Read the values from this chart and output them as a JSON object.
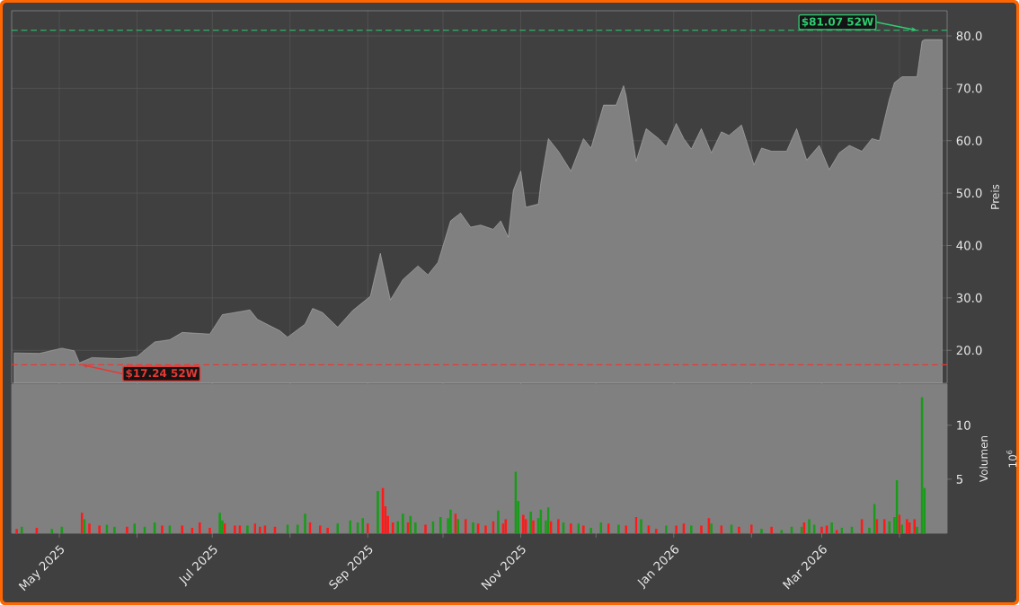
{
  "chart_data": [
    {
      "type": "area",
      "ylabel": "Preis",
      "color": "#808080",
      "grid": true,
      "tick_labels": "y",
      "x": [
        "2025-04-13",
        "2025-04-23",
        "2025-05-02",
        "2025-05-07",
        "2025-05-09",
        "2025-05-14",
        "2025-05-25",
        "2025-06-01",
        "2025-06-08",
        "2025-06-14",
        "2025-06-19",
        "2025-06-30",
        "2025-07-05",
        "2025-07-16",
        "2025-07-19",
        "2025-07-28",
        "2025-07-31",
        "2025-08-07",
        "2025-08-10",
        "2025-08-14",
        "2025-08-20",
        "2025-08-26",
        "2025-09-02",
        "2025-09-06",
        "2025-09-10",
        "2025-09-15",
        "2025-09-21",
        "2025-09-25",
        "2025-09-29",
        "2025-10-04",
        "2025-10-08",
        "2025-10-12",
        "2025-10-16",
        "2025-10-21",
        "2025-10-24",
        "2025-10-27",
        "2025-10-29",
        "2025-11-01",
        "2025-11-03",
        "2025-11-08",
        "2025-11-09",
        "2025-11-12",
        "2025-11-16",
        "2025-11-21",
        "2025-11-26",
        "2025-11-29",
        "2025-12-04",
        "2025-12-09",
        "2025-12-12",
        "2025-12-13",
        "2025-12-17",
        "2025-12-21",
        "2025-12-26",
        "2025-12-29",
        "2026-01-02",
        "2026-01-05",
        "2026-01-08",
        "2026-01-12",
        "2026-01-16",
        "2026-01-20",
        "2026-01-23",
        "2026-01-28",
        "2026-02-02",
        "2026-02-05",
        "2026-02-09",
        "2026-02-15",
        "2026-02-19",
        "2026-02-23",
        "2026-02-28",
        "2026-03-04",
        "2026-03-08",
        "2026-03-12",
        "2026-03-17",
        "2026-03-21",
        "2026-03-24",
        "2026-03-28",
        "2026-03-30",
        "2026-04-02",
        "2026-04-05",
        "2026-04-08",
        "2026-04-10",
        "2026-04-11",
        "2026-04-18"
      ],
      "values": [
        19.5,
        19.4,
        20.4,
        19.9,
        17.6,
        18.6,
        18.4,
        18.8,
        21.6,
        22,
        23.4,
        23.1,
        26.8,
        27.7,
        25.9,
        23.7,
        22.5,
        25.0,
        28.0,
        27.2,
        24.4,
        27.6,
        30.3,
        38.5,
        29.6,
        33.5,
        36.1,
        34.4,
        36.8,
        44.7,
        46.2,
        43.5,
        43.9,
        43.1,
        44.7,
        41.6,
        50.5,
        54.2,
        47.3,
        47.9,
        52,
        60.4,
        58,
        54.2,
        60.4,
        58.6,
        66.8,
        66.8,
        70.5,
        68.6,
        56.1,
        62.3,
        60.4,
        58.9,
        63.3,
        60.4,
        58.4,
        62.3,
        57.7,
        61.7,
        61,
        63,
        55.4,
        58.6,
        58.0,
        58.0,
        62.3,
        56.3,
        59.1,
        54.5,
        57.7,
        59.1,
        58,
        60.4,
        60.0,
        68,
        71.1,
        72.2,
        72.2,
        72.2,
        79.0,
        79.3,
        79.3
      ],
      "xlim": [
        "2025-04-12",
        "2026-04-20"
      ],
      "ylim": [
        13.7,
        84.8
      ],
      "xticks": [
        {
          "value": "2025-05-01",
          "label": null
        },
        {
          "value": "2025-06-01",
          "label": null
        },
        {
          "value": "2025-07-01",
          "label": null
        },
        {
          "value": "2025-08-01",
          "label": null
        },
        {
          "value": "2025-09-01",
          "label": null
        },
        {
          "value": "2025-10-01",
          "label": null
        },
        {
          "value": "2025-11-01",
          "label": null
        },
        {
          "value": "2025-12-01",
          "label": null
        },
        {
          "value": "2026-01-01",
          "label": null
        },
        {
          "value": "2026-02-01",
          "label": null
        },
        {
          "value": "2026-03-01",
          "label": null
        },
        {
          "value": "2026-04-01",
          "label": null
        }
      ],
      "yticks": [
        {
          "value": 20,
          "label": "20.0"
        },
        {
          "value": 30,
          "label": "30.0"
        },
        {
          "value": 40,
          "label": "40.0"
        },
        {
          "value": 50,
          "label": "50.0"
        },
        {
          "value": 60,
          "label": "60.0"
        },
        {
          "value": 70,
          "label": "70.0"
        },
        {
          "value": 80,
          "label": "80.0"
        }
      ],
      "ref_lines": [
        {
          "axis": "y",
          "value": 81.07,
          "color": "#2ecc71",
          "line_style": "dashed"
        },
        {
          "axis": "y",
          "value": 17.24,
          "color": "#e53935",
          "line_style": "dashed"
        }
      ],
      "annotations": [
        {
          "text": "$81.07 52W",
          "x": "2026-04-08",
          "y": 81.07
        },
        {
          "text": "$17.24 52W",
          "x": "2025-05-10",
          "y": 17.24
        }
      ]
    },
    {
      "type": "bar",
      "ylabel": "Volumen",
      "annotations": [
        "10$^{6}$"
      ],
      "x": [
        "2025-04-14",
        "2025-04-16",
        "2025-04-22",
        "2025-04-28",
        "2025-05-02",
        "2025-05-10",
        "2025-05-11",
        "2025-05-13",
        "2025-05-17",
        "2025-05-20",
        "2025-05-23",
        "2025-05-28",
        "2025-05-31",
        "2025-06-04",
        "2025-06-08",
        "2025-06-11",
        "2025-06-14",
        "2025-06-19",
        "2025-06-23",
        "2025-06-26",
        "2025-06-30",
        "2025-07-04",
        "2025-07-05",
        "2025-07-06",
        "2025-07-10",
        "2025-07-12",
        "2025-07-15",
        "2025-07-18",
        "2025-07-20",
        "2025-07-22",
        "2025-07-26",
        "2025-07-31",
        "2025-08-04",
        "2025-08-07",
        "2025-08-09",
        "2025-08-13",
        "2025-08-16",
        "2025-08-20",
        "2025-08-25",
        "2025-08-28",
        "2025-08-30",
        "2025-09-01",
        "2025-09-05",
        "2025-09-07",
        "2025-09-08",
        "2025-09-09",
        "2025-09-11",
        "2025-09-13",
        "2025-09-15",
        "2025-09-17",
        "2025-09-18",
        "2025-09-20",
        "2025-09-24",
        "2025-09-27",
        "2025-09-30",
        "2025-10-03",
        "2025-10-04",
        "2025-10-06",
        "2025-10-07",
        "2025-10-10",
        "2025-10-13",
        "2025-10-15",
        "2025-10-18",
        "2025-10-21",
        "2025-10-23",
        "2025-10-25",
        "2025-10-26",
        "2025-10-30",
        "2025-10-31",
        "2025-11-02",
        "2025-11-03",
        "2025-11-05",
        "2025-11-06",
        "2025-11-08",
        "2025-11-09",
        "2025-11-11",
        "2025-11-12",
        "2025-11-13",
        "2025-11-16",
        "2025-11-18",
        "2025-11-21",
        "2025-11-24",
        "2025-11-26",
        "2025-11-29",
        "2025-12-03",
        "2025-12-06",
        "2025-12-10",
        "2025-12-13",
        "2025-12-17",
        "2025-12-19",
        "2025-12-22",
        "2025-12-25",
        "2025-12-29",
        "2026-01-02",
        "2026-01-05",
        "2026-01-08",
        "2026-01-12",
        "2026-01-15",
        "2026-01-16",
        "2026-01-20",
        "2026-01-24",
        "2026-01-27",
        "2026-02-01",
        "2026-02-05",
        "2026-02-09",
        "2026-02-13",
        "2026-02-17",
        "2026-02-21",
        "2026-02-22",
        "2026-02-24",
        "2026-02-26",
        "2026-03-01",
        "2026-03-03",
        "2026-03-05",
        "2026-03-07",
        "2026-03-09",
        "2026-03-13",
        "2026-03-17",
        "2026-03-20",
        "2026-03-22",
        "2026-03-23",
        "2026-03-26",
        "2026-03-28",
        "2026-03-30",
        "2026-03-31",
        "2026-04-01",
        "2026-04-02",
        "2026-04-04",
        "2026-04-05",
        "2026-04-07",
        "2026-04-08",
        "2026-04-10",
        "2026-04-11"
      ],
      "values": [
        0.4,
        0.6,
        0.5,
        0.4,
        0.6,
        1.9,
        1.3,
        0.9,
        0.7,
        0.8,
        0.6,
        0.6,
        0.9,
        0.6,
        1.0,
        0.7,
        0.7,
        0.7,
        0.5,
        1.0,
        0.5,
        1.9,
        1.2,
        0.9,
        0.7,
        0.7,
        0.7,
        0.9,
        0.6,
        0.7,
        0.6,
        0.8,
        0.8,
        1.8,
        1.0,
        0.7,
        0.5,
        0.9,
        1.2,
        1.0,
        1.4,
        0.9,
        3.9,
        4.2,
        2.5,
        1.6,
        1.0,
        1.1,
        1.8,
        1.0,
        1.6,
        1.0,
        0.8,
        1.1,
        1.5,
        1.4,
        2.2,
        1.8,
        1.3,
        1.3,
        1.0,
        0.9,
        0.7,
        1.1,
        2.1,
        0.9,
        1.3,
        5.7,
        3.0,
        1.7,
        1.3,
        2.0,
        1.2,
        1.4,
        2.2,
        1.2,
        2.4,
        1.1,
        1.3,
        1.0,
        0.9,
        0.9,
        0.7,
        0.5,
        1.0,
        0.9,
        0.8,
        0.7,
        1.5,
        1.3,
        0.7,
        0.4,
        0.7,
        0.7,
        0.9,
        0.7,
        0.7,
        1.4,
        0.9,
        0.7,
        0.8,
        0.6,
        0.8,
        0.4,
        0.6,
        0.3,
        0.6,
        0.6,
        1.0,
        1.3,
        0.8,
        0.6,
        0.7,
        1.0,
        0.3,
        0.5,
        0.6,
        1.3,
        0.5,
        2.7,
        1.3,
        1.3,
        1.1,
        1.5,
        4.9,
        1.7,
        0.8,
        1.3,
        1.0,
        1.3,
        0.6,
        12.6,
        4.2
      ],
      "colors": [
        "#ff1a1a",
        "#1a9a1a",
        "#ff1a1a",
        "#1a9a1a",
        "#1a9a1a",
        "#ff1a1a",
        "#1a9a1a",
        "#ff1a1a",
        "#ff1a1a",
        "#1a9a1a",
        "#1a9a1a",
        "#ff1a1a",
        "#1a9a1a",
        "#1a9a1a",
        "#1a9a1a",
        "#ff1a1a",
        "#1a9a1a",
        "#ff1a1a",
        "#ff1a1a",
        "#ff1a1a",
        "#ff1a1a",
        "#1a9a1a",
        "#1a9a1a",
        "#ff1a1a",
        "#ff1a1a",
        "#ff1a1a",
        "#1a9a1a",
        "#ff1a1a",
        "#ff1a1a",
        "#ff1a1a",
        "#ff1a1a",
        "#1a9a1a",
        "#1a9a1a",
        "#1a9a1a",
        "#ff1a1a",
        "#ff1a1a",
        "#ff1a1a",
        "#1a9a1a",
        "#1a9a1a",
        "#1a9a1a",
        "#1a9a1a",
        "#ff1a1a",
        "#1a9a1a",
        "#ff1a1a",
        "#ff1a1a",
        "#ff1a1a",
        "#ff1a1a",
        "#1a9a1a",
        "#1a9a1a",
        "#ff1a1a",
        "#1a9a1a",
        "#1a9a1a",
        "#ff1a1a",
        "#1a9a1a",
        "#1a9a1a",
        "#1a9a1a",
        "#1a9a1a",
        "#ff1a1a",
        "#1a9a1a",
        "#ff1a1a",
        "#1a9a1a",
        "#ff1a1a",
        "#ff1a1a",
        "#ff1a1a",
        "#1a9a1a",
        "#ff1a1a",
        "#ff1a1a",
        "#1a9a1a",
        "#1a9a1a",
        "#ff1a1a",
        "#ff1a1a",
        "#1a9a1a",
        "#ff1a1a",
        "#1a9a1a",
        "#1a9a1a",
        "#1a9a1a",
        "#1a9a1a",
        "#ff1a1a",
        "#ff1a1a",
        "#1a9a1a",
        "#ff1a1a",
        "#1a9a1a",
        "#ff1a1a",
        "#1a9a1a",
        "#1a9a1a",
        "#ff1a1a",
        "#1a9a1a",
        "#ff1a1a",
        "#ff1a1a",
        "#1a9a1a",
        "#ff1a1a",
        "#ff1a1a",
        "#1a9a1a",
        "#ff1a1a",
        "#ff1a1a",
        "#1a9a1a",
        "#ff1a1a",
        "#ff1a1a",
        "#1a9a1a",
        "#ff1a1a",
        "#1a9a1a",
        "#ff1a1a",
        "#ff1a1a",
        "#1a9a1a",
        "#ff1a1a",
        "#1a9a1a",
        "#1a9a1a",
        "#1a9a1a",
        "#ff1a1a",
        "#1a9a1a",
        "#1a9a1a",
        "#ff1a1a",
        "#ff1a1a",
        "#1a9a1a",
        "#ff1a1a",
        "#1a9a1a",
        "#1a9a1a",
        "#ff1a1a",
        "#1a9a1a",
        "#1a9a1a",
        "#ff1a1a",
        "#ff1a1a",
        "#1a9a1a",
        "#1a9a1a",
        "#1a9a1a",
        "#ff1a1a",
        "#1a9a1a",
        "#ff1a1a",
        "#ff1a1a",
        "#ff1a1a",
        "#1a9a1a",
        "#1a9a1a",
        "#1a9a1a"
      ],
      "xlim": [
        "2025-04-12",
        "2026-04-20"
      ],
      "ylim": [
        0,
        13.8
      ],
      "xticks": [
        {
          "value": "2025-05-01",
          "label": "May 2025"
        },
        {
          "value": "2025-06-01",
          "label": null
        },
        {
          "value": "2025-07-01",
          "label": "Jul 2025"
        },
        {
          "value": "2025-08-01",
          "label": null
        },
        {
          "value": "2025-09-01",
          "label": "Sep 2025"
        },
        {
          "value": "2025-10-01",
          "label": null
        },
        {
          "value": "2025-11-01",
          "label": "Nov 2025"
        },
        {
          "value": "2025-12-01",
          "label": null
        },
        {
          "value": "2026-01-01",
          "label": "Jan 2026"
        },
        {
          "value": "2026-02-01",
          "label": null
        },
        {
          "value": "2026-03-01",
          "label": "Mar 2026"
        },
        {
          "value": "2026-04-01",
          "label": null
        }
      ],
      "yticks": [
        5,
        10
      ]
    }
  ]
}
